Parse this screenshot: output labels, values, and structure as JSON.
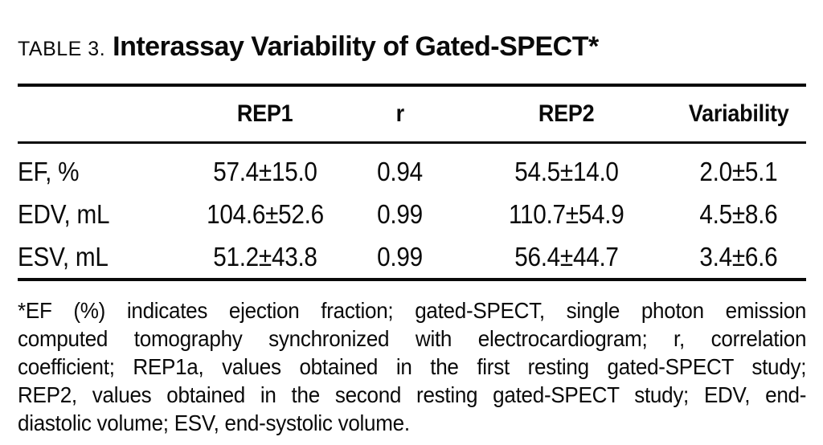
{
  "title": {
    "label": "TABLE 3.",
    "heading": "Interassay Variability of Gated-SPECT*"
  },
  "table": {
    "columns": [
      "",
      "REP1",
      "r",
      "REP2",
      "Variability"
    ],
    "rows": [
      {
        "label": "EF, %",
        "rep1": "57.4±15.0",
        "r": "0.94",
        "rep2": "54.5±14.0",
        "variability": "2.0±5.1"
      },
      {
        "label": "EDV, mL",
        "rep1": "104.6±52.6",
        "r": "0.99",
        "rep2": "110.7±54.9",
        "variability": "4.5±8.6"
      },
      {
        "label": "ESV, mL",
        "rep1": "51.2±43.8",
        "r": "0.99",
        "rep2": "56.4±44.7",
        "variability": "3.4±6.6"
      }
    ]
  },
  "footnote": {
    "lines": [
      "*EF (%) indicates ejection fraction; gated-SPECT, single photon emission",
      "computed tomography synchronized with electrocardiogram; r, correlation",
      "coefficient; REP1a, values obtained in the first resting gated-SPECT study;",
      "REP2, values obtained in the second resting gated-SPECT study; EDV, end-",
      "diastolic volume; ESV, end-systolic volume."
    ]
  },
  "colors": {
    "background": "#ffffff",
    "text": "#0a0a0a",
    "rule": "#0a0a0a"
  }
}
